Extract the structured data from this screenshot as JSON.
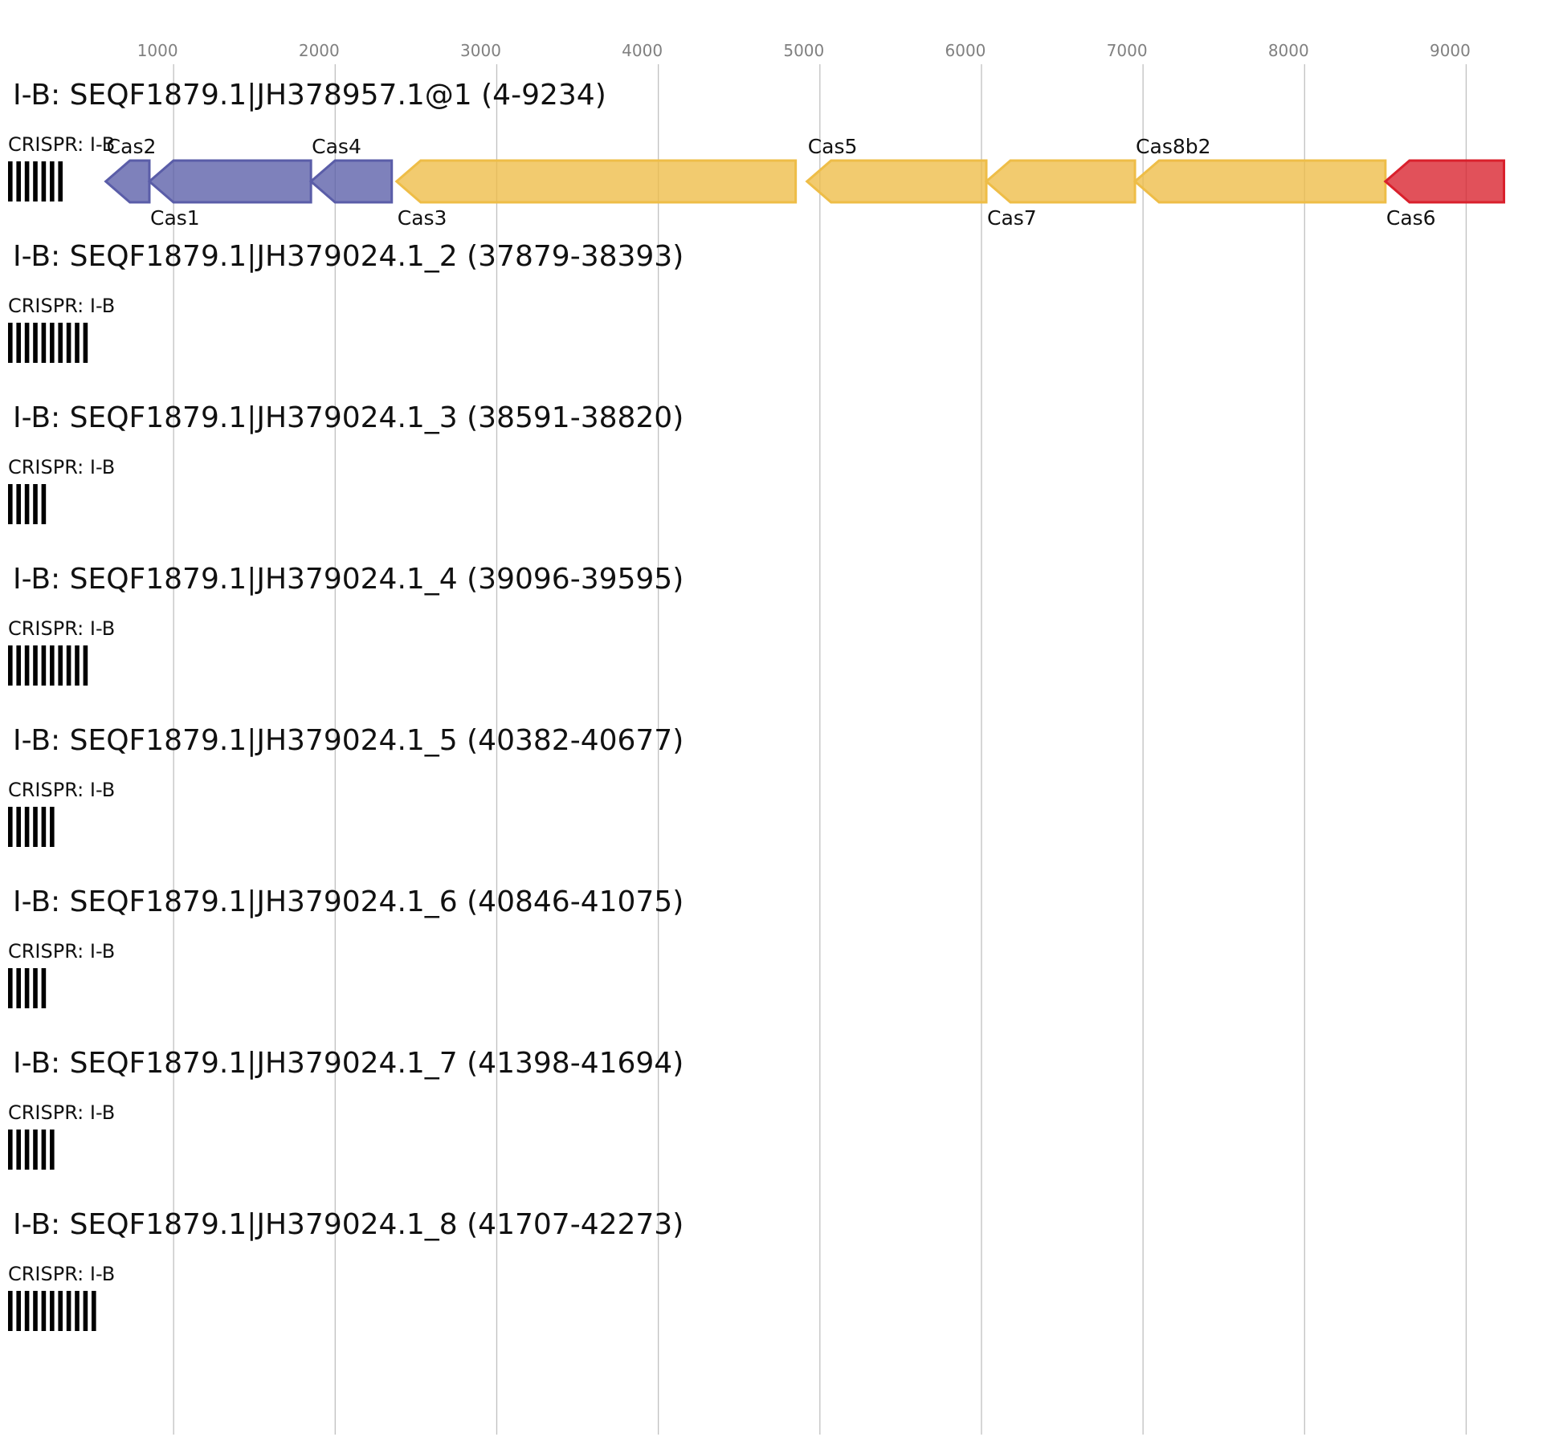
{
  "axis": {
    "ticks": [
      1000,
      2000,
      3000,
      4000,
      5000,
      6000,
      7000,
      8000,
      9000
    ],
    "domain": [
      0,
      9234
    ],
    "grid": true,
    "grid_color": "#c0c0c0",
    "tick_label_color": "#808080"
  },
  "colors": {
    "adaptation": "#5a5da8",
    "interference": "#eebd47",
    "processing": "#d9202c",
    "crispr": "#000000"
  },
  "loci": [
    {
      "title": "I-B: SEQF1879.1|JH378957.1@1 (4-9234)",
      "crispr_label": "CRISPR: I-B",
      "crispr_repeats": 7,
      "genes": [
        {
          "name": "Cas2",
          "start": 580,
          "end": 850,
          "strand": "-",
          "category": "adaptation",
          "label_pos": "above"
        },
        {
          "name": "Cas1",
          "start": 850,
          "end": 1850,
          "strand": "-",
          "category": "adaptation",
          "label_pos": "below"
        },
        {
          "name": "Cas4",
          "start": 1850,
          "end": 2350,
          "strand": "-",
          "category": "adaptation",
          "label_pos": "above"
        },
        {
          "name": "Cas3",
          "start": 2380,
          "end": 4850,
          "strand": "-",
          "category": "interference",
          "label_pos": "below"
        },
        {
          "name": "Cas5",
          "start": 4920,
          "end": 6030,
          "strand": "-",
          "category": "interference",
          "label_pos": "above"
        },
        {
          "name": "Cas7",
          "start": 6030,
          "end": 6950,
          "strand": "-",
          "category": "interference",
          "label_pos": "below"
        },
        {
          "name": "Cas8b2",
          "start": 6950,
          "end": 8500,
          "strand": "-",
          "category": "interference",
          "label_pos": "above"
        },
        {
          "name": "Cas6",
          "start": 8500,
          "end": 9234,
          "strand": "-",
          "category": "processing",
          "label_pos": "below"
        }
      ]
    },
    {
      "title": "I-B: SEQF1879.1|JH379024.1_2 (37879-38393)",
      "crispr_label": "CRISPR: I-B",
      "crispr_repeats": 10,
      "genes": []
    },
    {
      "title": "I-B: SEQF1879.1|JH379024.1_3 (38591-38820)",
      "crispr_label": "CRISPR: I-B",
      "crispr_repeats": 5,
      "genes": []
    },
    {
      "title": "I-B: SEQF1879.1|JH379024.1_4 (39096-39595)",
      "crispr_label": "CRISPR: I-B",
      "crispr_repeats": 10,
      "genes": []
    },
    {
      "title": "I-B: SEQF1879.1|JH379024.1_5 (40382-40677)",
      "crispr_label": "CRISPR: I-B",
      "crispr_repeats": 6,
      "genes": []
    },
    {
      "title": "I-B: SEQF1879.1|JH379024.1_6 (40846-41075)",
      "crispr_label": "CRISPR: I-B",
      "crispr_repeats": 5,
      "genes": []
    },
    {
      "title": "I-B: SEQF1879.1|JH379024.1_7 (41398-41694)",
      "crispr_label": "CRISPR: I-B",
      "crispr_repeats": 6,
      "genes": []
    },
    {
      "title": "I-B: SEQF1879.1|JH379024.1_8 (41707-42273)",
      "crispr_label": "CRISPR: I-B",
      "crispr_repeats": 11,
      "genes": []
    }
  ]
}
